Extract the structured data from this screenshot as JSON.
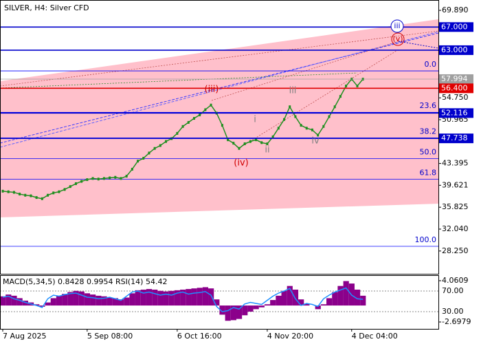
{
  "chart_data": [
    {
      "type": "line",
      "title": "SILVER, H4:  Silver CFD",
      "color": "#1f8f1f",
      "categories": [
        "7 Aug 2025",
        null,
        null,
        null,
        null,
        null,
        null,
        null,
        null,
        null,
        null,
        null,
        null,
        null,
        null,
        "5 Sep 08:00",
        null,
        null,
        null,
        null,
        null,
        null,
        null,
        null,
        null,
        null,
        null,
        null,
        null,
        null,
        null,
        "6 Oct 16:00",
        null,
        null,
        null,
        null,
        null,
        null,
        null,
        null,
        null,
        null,
        null,
        null,
        null,
        null,
        null,
        "4 Nov 20:00",
        null,
        null,
        null,
        null,
        null,
        null,
        null,
        null,
        null,
        null,
        null,
        null,
        null,
        null,
        "4 Dec 04:00",
        null,
        null
      ],
      "values": [
        38.6,
        38.5,
        38.4,
        38.1,
        37.9,
        37.8,
        37.5,
        37.3,
        37.9,
        38.3,
        38.5,
        38.9,
        39.4,
        39.9,
        40.3,
        40.6,
        40.8,
        40.7,
        40.8,
        40.9,
        41.0,
        40.8,
        41.2,
        42.4,
        43.8,
        44.3,
        45.2,
        46.0,
        46.5,
        47.2,
        47.7,
        48.6,
        49.8,
        50.5,
        51.2,
        51.8,
        52.7,
        53.5,
        52.1,
        50.0,
        47.5,
        46.9,
        46.0,
        46.8,
        47.2,
        47.5,
        47.0,
        46.8,
        48.0,
        49.5,
        51.0,
        53.2,
        51.5,
        50.0,
        49.5,
        49.2,
        48.3,
        49.8,
        51.5,
        53.2,
        55.0,
        56.8,
        58.0,
        56.8,
        57.99
      ],
      "ylim": [
        24.3,
        71.68
      ],
      "yticks": [
        {
          "value": 69.89,
          "label": "69.890"
        },
        {
          "value": 54.75,
          "label": "54.750"
        },
        {
          "value": 50.965,
          "label": "50.965"
        },
        {
          "value": 43.395,
          "label": "43.395"
        },
        {
          "value": 39.621,
          "label": "39.621"
        },
        {
          "value": 35.825,
          "label": "35.825"
        },
        {
          "value": 32.04,
          "label": "32.040"
        },
        {
          "value": 28.25,
          "label": "28.250"
        }
      ],
      "levels": [
        {
          "value": 67,
          "label": "67.000",
          "color": "#0000cc"
        },
        {
          "value": 63,
          "label": "63.000",
          "color": "#0000cc"
        },
        {
          "value": 57.994,
          "label": "57.994",
          "color": "#a0a0a0"
        },
        {
          "value": 56.4,
          "label": "56.400",
          "color": "#e00000"
        },
        {
          "value": 52.116,
          "label": "52.116",
          "color": "#0000cc"
        },
        {
          "value": 47.738,
          "label": "47.738",
          "color": "#0000cc"
        }
      ],
      "fib_levels": [
        {
          "value": 59.41,
          "label": "0.0"
        },
        {
          "value": 52.25,
          "label": "23.6"
        },
        {
          "value": 47.82,
          "label": "38.2"
        },
        {
          "value": 44.24,
          "label": "50.0"
        },
        {
          "value": 40.65,
          "label": "61.8"
        },
        {
          "value": 29.06,
          "label": "100.0"
        }
      ],
      "annotations": [
        "(iii)",
        "iii",
        "i",
        "ii",
        "iv",
        "(iv)",
        "(v)",
        "iii"
      ]
    },
    {
      "type": "bar",
      "title": "MACD(5,34,5) 0.8428 0.9954 RSI(14) 54.42",
      "ylim": [
        -3.824,
        4.962
      ],
      "yticks": [
        4.0609,
        -2.6979
      ],
      "y2lim": [
        -3.33,
        100.67
      ],
      "y2ticks": [
        {
          "value": 70,
          "label": "70.00"
        },
        {
          "value": 30,
          "label": "30.00"
        }
      ],
      "series": [
        {
          "name": "MACD",
          "color": "#8b008b",
          "values": [
            1.5,
            1.8,
            1.6,
            1.2,
            0.8,
            0.5,
            0.2,
            -0.2,
            0.5,
            1.2,
            1.6,
            1.9,
            2.2,
            2.4,
            2.3,
            2.0,
            1.8,
            1.6,
            1.5,
            1.3,
            1.2,
            1.0,
            1.3,
            2.0,
            2.5,
            2.6,
            2.7,
            2.6,
            2.4,
            2.3,
            2.4,
            2.5,
            2.6,
            2.7,
            2.8,
            2.9,
            3.0,
            2.8,
            1.0,
            -1.5,
            -2.5,
            -2.4,
            -2.2,
            -1.6,
            -1.0,
            -0.6,
            -0.3,
            0.2,
            0.9,
            1.6,
            2.4,
            3.2,
            2.6,
            1.0,
            0.3,
            0.0,
            -0.6,
            0.2,
            1.2,
            2.2,
            3.2,
            4.0,
            3.6,
            2.6,
            1.6
          ]
        },
        {
          "name": "RSI",
          "color": "#1e90ff",
          "axis": "y2",
          "values": [
            58,
            60,
            55,
            52,
            48,
            45,
            42,
            38,
            55,
            62,
            60,
            63,
            65,
            66,
            62,
            58,
            57,
            55,
            56,
            58,
            55,
            52,
            60,
            68,
            70,
            66,
            68,
            65,
            62,
            64,
            62,
            66,
            68,
            64,
            66,
            67,
            69,
            62,
            40,
            30,
            32,
            38,
            35,
            45,
            48,
            46,
            44,
            52,
            60,
            66,
            70,
            75,
            55,
            42,
            46,
            44,
            40,
            55,
            62,
            68,
            72,
            76,
            62,
            55,
            54
          ]
        }
      ]
    }
  ]
}
